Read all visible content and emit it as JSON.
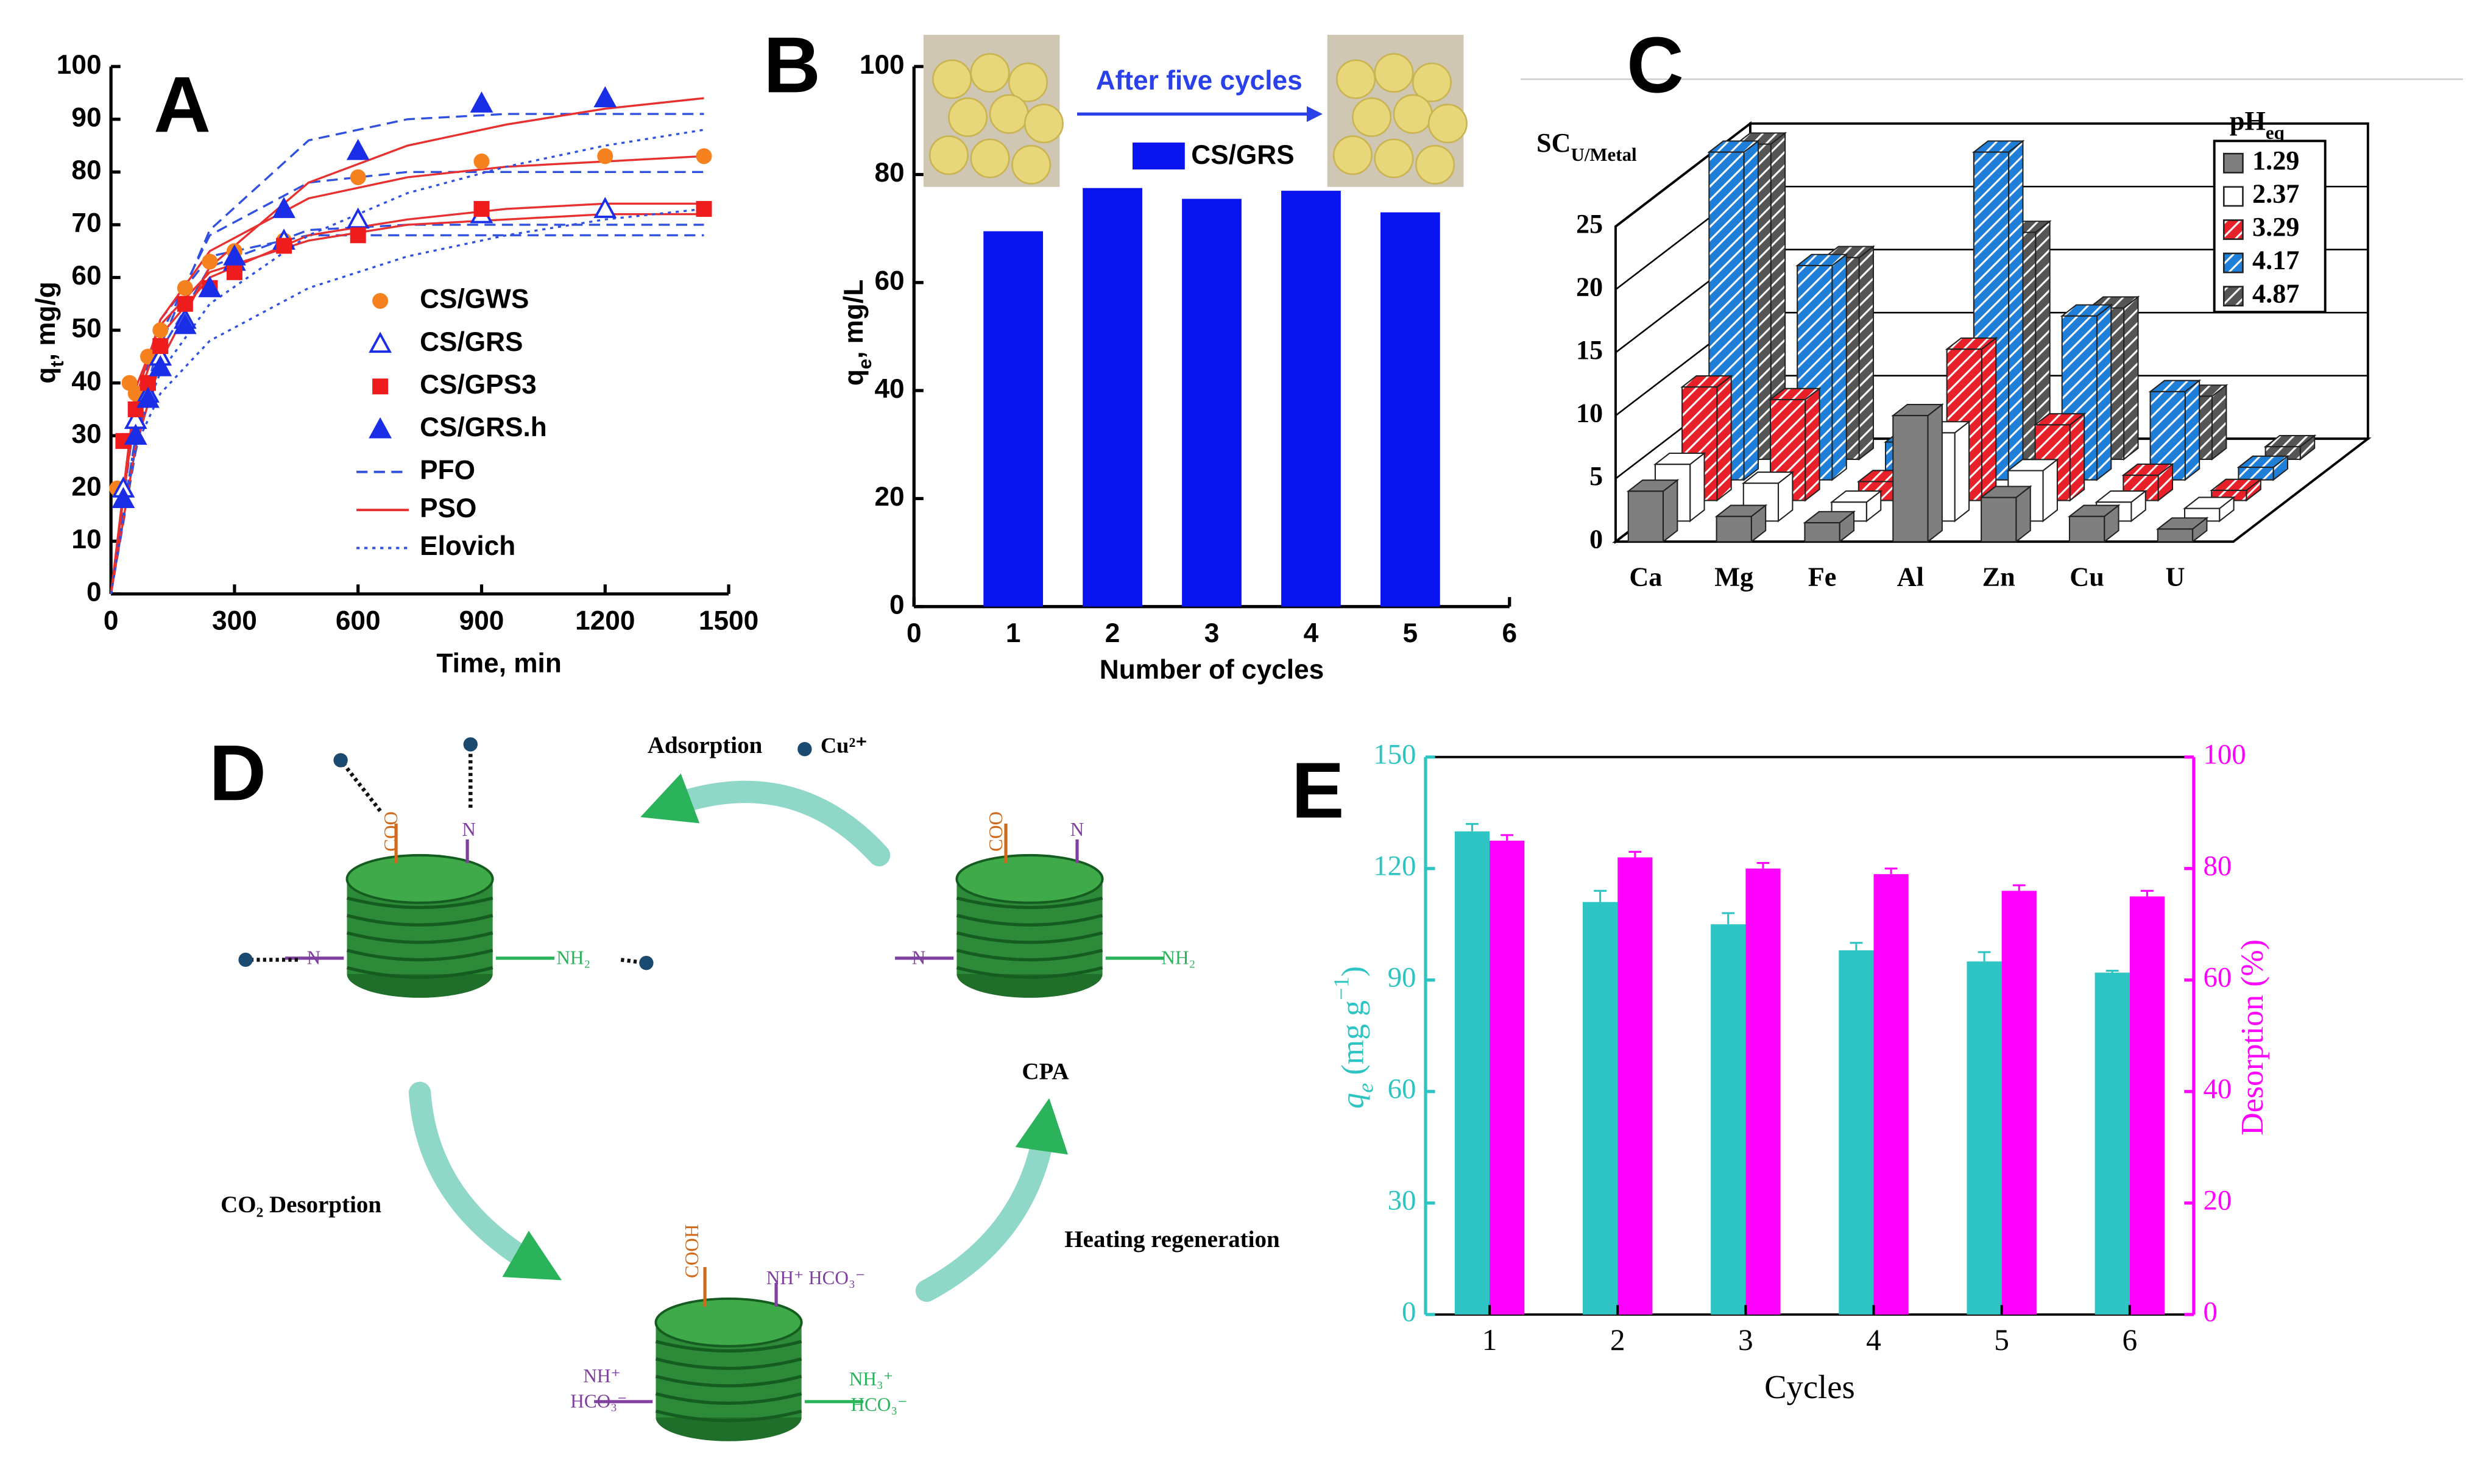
{
  "chart_data": [
    {
      "panel": "A",
      "type": "scatter",
      "x_label": "Time, min",
      "y_label": [
        {
          "text": "q"
        },
        {
          "text": "t",
          "shift": "sub"
        },
        {
          "text": ", mg/g"
        }
      ],
      "xlim": [
        0,
        1500
      ],
      "xticks": [
        0,
        300,
        600,
        900,
        1200,
        1500
      ],
      "ylim": [
        0,
        100
      ],
      "yticks": [
        0,
        10,
        20,
        30,
        40,
        50,
        60,
        70,
        80,
        90,
        100
      ],
      "series": [
        {
          "name": "CS/GWS",
          "color": "#f5821f",
          "marker": "circle",
          "x": [
            15,
            30,
            45,
            60,
            90,
            120,
            180,
            240,
            300,
            420,
            600,
            900,
            1200,
            1440
          ],
          "values": [
            20,
            29,
            40,
            38,
            45,
            50,
            58,
            63,
            65,
            67,
            79,
            82,
            83,
            83
          ]
        },
        {
          "name": "CS/GRS",
          "color": "#1a2ee8",
          "marker": "triangle-open",
          "x": [
            30,
            60,
            90,
            120,
            180,
            240,
            300,
            420,
            600,
            900,
            1200
          ],
          "values": [
            20,
            33,
            38,
            45,
            52,
            58,
            63,
            67,
            71,
            72,
            73
          ]
        },
        {
          "name": "CS/GPS3",
          "color": "#ee1c1c",
          "marker": "square",
          "x": [
            30,
            60,
            90,
            120,
            180,
            240,
            300,
            420,
            600,
            900,
            1440
          ],
          "values": [
            29,
            35,
            40,
            47,
            55,
            58,
            61,
            66,
            68,
            73,
            73
          ]
        },
        {
          "name": "CS/GRS.h",
          "color": "#1a2ee8",
          "marker": "triangle",
          "x": [
            30,
            60,
            90,
            120,
            180,
            240,
            300,
            420,
            600,
            900,
            1200
          ],
          "values": [
            18,
            30,
            37,
            43,
            51,
            58,
            64,
            73,
            84,
            93,
            94
          ]
        }
      ],
      "fit_x": [
        0,
        60,
        120,
        240,
        480,
        720,
        960,
        1200,
        1440
      ],
      "fits": [
        {
          "name": "PFO",
          "color": "#3050e0",
          "dash": "dashed",
          "curves": [
            [
              0,
              30,
              49,
              68,
              78,
              80,
              80,
              80,
              80
            ],
            [
              0,
              29,
              46,
              62,
              69,
              70,
              70,
              70,
              70
            ],
            [
              0,
              35,
              52,
              64,
              68,
              68,
              68,
              68,
              68
            ],
            [
              0,
              27,
              47,
              69,
              86,
              90,
              91,
              91,
              91
            ]
          ]
        },
        {
          "name": "PSO",
          "color": "#e83030",
          "dash": "solid",
          "curves": [
            [
              0,
              37,
              52,
              65,
              75,
              79,
              81,
              82,
              83
            ],
            [
              0,
              36,
              49,
              60,
              68,
              71,
              73,
              74,
              74
            ],
            [
              0,
              39,
              51,
              61,
              67,
              70,
              71,
              72,
              72
            ],
            [
              0,
              28,
              44,
              62,
              78,
              85,
              89,
              92,
              94
            ]
          ]
        },
        {
          "name": "Elovich",
          "color": "#3050e0",
          "dash": "dotted",
          "curves": [
            [
              0,
              30,
              42,
              55,
              68,
              76,
              81,
              85,
              88
            ],
            [
              0,
              28,
              38,
              48,
              58,
              64,
              68,
              71,
              73
            ]
          ]
        }
      ]
    },
    {
      "panel": "B",
      "type": "bar",
      "x_label": "Number of cycles",
      "y_label": [
        {
          "text": "q"
        },
        {
          "text": "e",
          "shift": "sub"
        },
        {
          "text": ", mg/L"
        }
      ],
      "annotation": "After five cycles",
      "xlim": [
        0,
        6
      ],
      "xticks": [
        0,
        1,
        2,
        3,
        4,
        5,
        6
      ],
      "ylim": [
        0,
        100
      ],
      "yticks": [
        0,
        20,
        40,
        60,
        80,
        100
      ],
      "x": [
        1,
        2,
        3,
        4,
        5
      ],
      "series": [
        {
          "name": "CS/GRS",
          "color": "#0a14f0",
          "values": [
            69.5,
            77.5,
            75.5,
            77,
            73
          ]
        }
      ]
    },
    {
      "panel": "C",
      "type": "bar3d",
      "z_label": [
        {
          "text": "SC"
        },
        {
          "text": "U/Metal",
          "shift": "sub"
        }
      ],
      "legend_title": [
        {
          "text": "pH"
        },
        {
          "text": "eq",
          "shift": "sub"
        }
      ],
      "categories": [
        "Ca",
        "Mg",
        "Fe",
        "Al",
        "Zn",
        "Cu",
        "U"
      ],
      "zlim": [
        0,
        25
      ],
      "zticks": [
        0,
        5,
        10,
        15,
        20,
        25
      ],
      "series": [
        {
          "name": "1.29",
          "color": "#7f7f7f",
          "hatch": false,
          "values": [
            4,
            2,
            1.5,
            10,
            3.5,
            2,
            1
          ]
        },
        {
          "name": "2.37",
          "color": "#ffffff",
          "hatch": false,
          "values": [
            4.5,
            3,
            1.5,
            7,
            4,
            1.5,
            1
          ]
        },
        {
          "name": "3.29",
          "color": "#e8202a",
          "hatch": true,
          "values": [
            9,
            8,
            1.5,
            12,
            6,
            2,
            0.8
          ]
        },
        {
          "name": "4.17",
          "color": "#1f7fd8",
          "hatch": true,
          "values": [
            26,
            17,
            3,
            26,
            13,
            7,
            1
          ]
        },
        {
          "name": "4.87",
          "color": "#555555",
          "hatch": true,
          "values": [
            25,
            16,
            2,
            18,
            12,
            5,
            1
          ]
        }
      ]
    },
    {
      "panel": "E",
      "type": "bar",
      "x_label": "Cycles",
      "y_label": [
        {
          "text": "q",
          "style": "italic"
        },
        {
          "text": "e",
          "shift": "sub",
          "style": "italic"
        },
        {
          "text": " (mg g"
        },
        {
          "text": "−1",
          "shift": "super"
        },
        {
          "text": ")"
        }
      ],
      "y2_label": "Desorption (%)",
      "categories": [
        "1",
        "2",
        "3",
        "4",
        "5",
        "6"
      ],
      "ylim": [
        0,
        150
      ],
      "yticks": [
        0,
        30,
        60,
        90,
        120,
        150
      ],
      "y2lim": [
        0,
        100
      ],
      "y2ticks": [
        0,
        20,
        40,
        60,
        80,
        100
      ],
      "series": [
        {
          "color": "#2ec4c4",
          "values": [
            130,
            111,
            105,
            98,
            95,
            92
          ],
          "errors": [
            2,
            3,
            3,
            2,
            2.5,
            0.5
          ]
        },
        {
          "color": "#ff00ff",
          "axis": "y2",
          "values": [
            85,
            82,
            80,
            79,
            76,
            75
          ],
          "errors": [
            1,
            1,
            1,
            1,
            1,
            1
          ]
        }
      ]
    }
  ],
  "diagram": {
    "panel": "D",
    "adsorption": "Adsorption",
    "ion": "Cu²⁺",
    "cpa": "CPA",
    "co2_desorption": "CO₂ Desorption",
    "heating": "Heating regeneration",
    "nodes": [
      {
        "labels": [
          "COO",
          "N",
          "N",
          "NH₂"
        ]
      },
      {
        "labels": [
          "COO",
          "N",
          "N",
          "NH₂"
        ]
      },
      {
        "labels": [
          "COOH",
          "NH⁺ HCO₃⁻",
          "NH⁺",
          "HCO₃⁻",
          "NH₃⁺",
          "HCO₃⁻"
        ]
      }
    ]
  }
}
